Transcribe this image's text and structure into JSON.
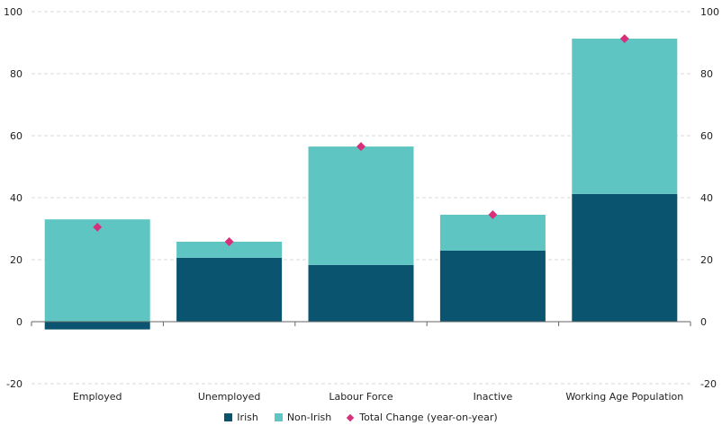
{
  "chart_data": {
    "type": "bar",
    "stacked": true,
    "categories": [
      "Employed",
      "Unemployed",
      "Labour Force",
      "Inactive",
      "Working Age Population"
    ],
    "series": [
      {
        "name": "Irish",
        "values": [
          -2.5,
          20.6,
          18.3,
          22.9,
          41.2
        ],
        "color": "#0b5470"
      },
      {
        "name": "Non-Irish",
        "values": [
          33.0,
          5.2,
          38.2,
          11.6,
          50.1
        ],
        "color": "#5fc5c2"
      }
    ],
    "markers": {
      "name": "Total Change (year-on-year)",
      "values": [
        30.5,
        25.8,
        56.5,
        34.5,
        91.3
      ],
      "color": "#d6307a"
    },
    "ylim": [
      -20,
      100
    ],
    "yticks": [
      -20,
      0,
      20,
      40,
      60,
      80,
      100
    ],
    "grid": true,
    "secondary_axis": true,
    "legend": "bottom"
  }
}
